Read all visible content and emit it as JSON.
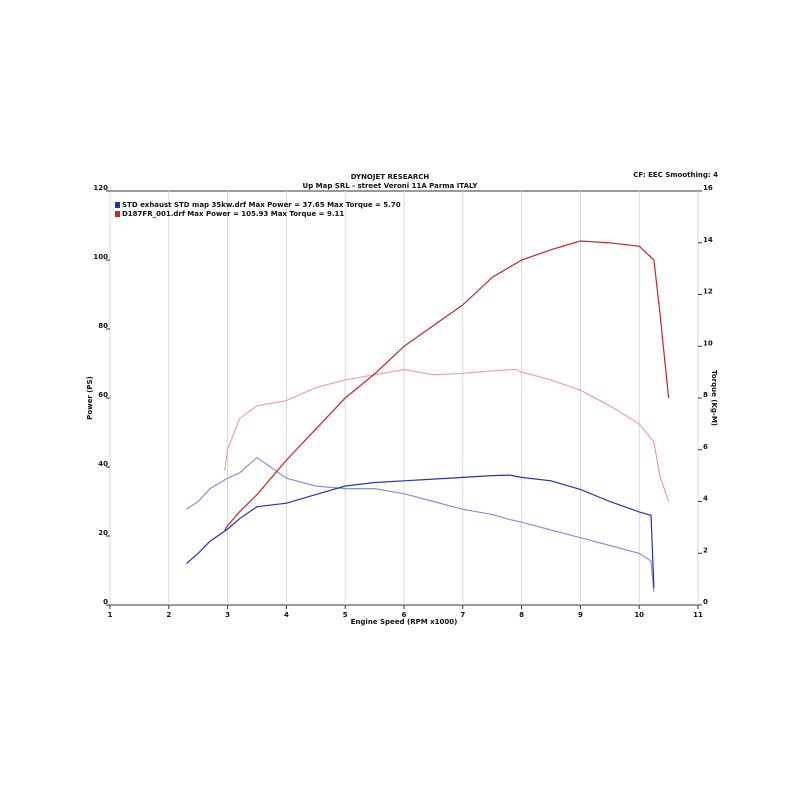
{
  "chart_data": {
    "type": "line",
    "title": "DYNOJET RESEARCH",
    "subtitle": "Up Map SRL - street Veroni 11A Parma ITALY",
    "note": "CF: EEC  Smoothing: 4",
    "xlabel": "Engine Speed (RPM x1000)",
    "ylabel": "Power (PS)",
    "y2label": "Torque (Kg-M)",
    "xlim": [
      1,
      11
    ],
    "xticks": [
      1,
      2,
      3,
      4,
      5,
      6,
      7,
      8,
      9,
      10,
      11
    ],
    "ylim": [
      0,
      120
    ],
    "yticks": [
      0,
      20,
      40,
      60,
      80,
      100,
      120
    ],
    "y2lim": [
      0,
      16
    ],
    "y2ticks": [
      0,
      2,
      4,
      6,
      8,
      10,
      12,
      14,
      16
    ],
    "grid": "x",
    "runs": [
      {
        "name": "STD exhaust STD map 35kw.drf Max Power = 37.65     Max Torque = 5.70",
        "color": "#2233bb",
        "torque_color": "#8c8ee0",
        "x": [
          2.3,
          2.5,
          2.7,
          3.0,
          3.2,
          3.5,
          4.0,
          4.5,
          5.0,
          5.5,
          6.0,
          6.5,
          7.0,
          7.5,
          7.8,
          8.0,
          8.5,
          9.0,
          9.5,
          10.0,
          10.2,
          10.25
        ],
        "power": [
          12,
          15,
          18.5,
          22,
          25,
          28.5,
          29.5,
          32,
          34.5,
          35.5,
          36,
          36.5,
          37,
          37.5,
          37.65,
          37,
          36,
          33.5,
          30,
          27,
          26,
          5
        ],
        "torque": [
          3.7,
          4.0,
          4.5,
          4.9,
          5.1,
          5.7,
          4.9,
          4.6,
          4.5,
          4.5,
          4.3,
          4.0,
          3.7,
          3.5,
          3.3,
          3.2,
          2.9,
          2.6,
          2.3,
          2.0,
          1.7,
          0.5
        ]
      },
      {
        "name": "D187FR_001.drf Max Power = 105.93     Max Torque = 9.11",
        "color": "#cc2222",
        "torque_color": "#f0a0a0",
        "x": [
          2.95,
          3.0,
          3.2,
          3.5,
          4.0,
          4.5,
          5.0,
          5.5,
          6.0,
          6.5,
          7.0,
          7.5,
          7.9,
          8.0,
          8.5,
          9.0,
          9.5,
          10.0,
          10.25,
          10.35,
          10.5
        ],
        "power": [
          21.7,
          23,
          27,
          32,
          42,
          51,
          60,
          67,
          75,
          81,
          87,
          95,
          99,
          100,
          103,
          105.5,
          105,
          104,
          100,
          85,
          60
        ],
        "torque": [
          5.2,
          6.0,
          7.2,
          7.7,
          7.9,
          8.4,
          8.7,
          8.9,
          9.1,
          8.9,
          8.95,
          9.05,
          9.11,
          9.0,
          8.7,
          8.3,
          7.7,
          7.0,
          6.3,
          5.0,
          4.0
        ]
      }
    ]
  }
}
